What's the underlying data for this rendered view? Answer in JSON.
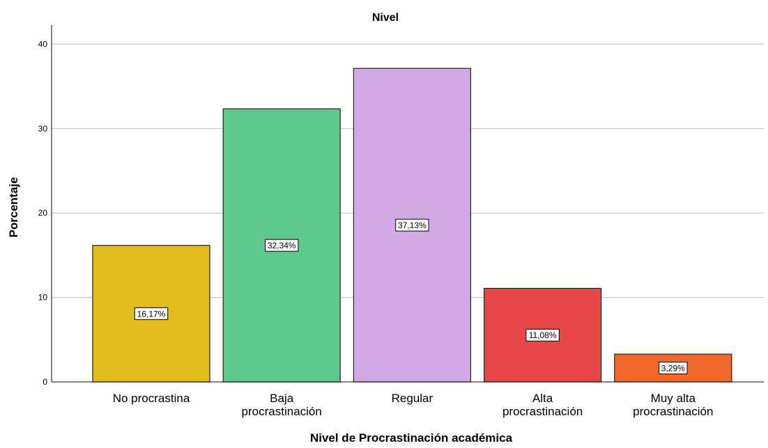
{
  "chart_data": {
    "type": "bar",
    "title": "Nivel",
    "xlabel": "Nivel de Procrastinación académica",
    "ylabel": "Porcentaje",
    "ylim": [
      0,
      42
    ],
    "yticks": [
      0,
      10,
      20,
      30,
      40
    ],
    "grid": true,
    "categories": [
      [
        "No procrastina"
      ],
      [
        "Baja",
        "procrastinación"
      ],
      [
        "Regular"
      ],
      [
        "Alta",
        "procrastinación"
      ],
      [
        "Muy alta",
        "procrastinación"
      ]
    ],
    "values": [
      16.17,
      32.34,
      37.13,
      11.08,
      3.29
    ],
    "data_labels": [
      "16,17%",
      "32,34%",
      "37,13%",
      "11,08%",
      "3,29%"
    ],
    "colors": [
      "#E0BC1E",
      "#5DC98A",
      "#D2A9E4",
      "#E8474A",
      "#F0682A"
    ]
  }
}
